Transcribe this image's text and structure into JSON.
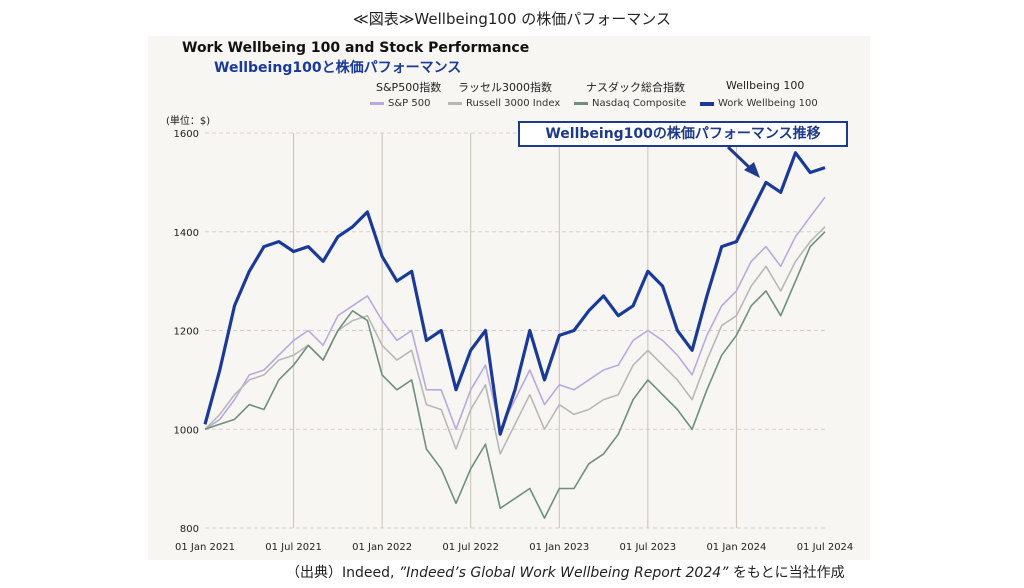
{
  "figure_title": "≪図表≫Wellbeing100 の株価パフォーマンス",
  "source_prefix": "（出典）Indeed,",
  "source_italic": "”Indeed’s Global Work Wellbeing Report 2024”",
  "source_suffix": "をもとに当社作成",
  "callout": "Wellbeing100の株価パフォーマンス推移",
  "colors": {
    "sp500": "#b9a9e0",
    "russell": "#b8b8b8",
    "nasdaq": "#6f8f7e",
    "wellbeing": "#1a3a9a"
  },
  "chart_data": {
    "type": "line",
    "title": "Work Wellbeing 100 and Stock Performance",
    "subtitle": "Wellbeing100と株価パフォーマンス",
    "ylabel": "(単位：$)",
    "ylim": [
      800,
      1600
    ],
    "yticks": [
      800,
      1000,
      1200,
      1400,
      1600
    ],
    "xlim": [
      "2021-01-01",
      "2024-07-01"
    ],
    "xticks": [
      "01 Jan 2021",
      "01 Jul 2021",
      "01 Jan 2022",
      "01 Jul 2022",
      "01 Jan 2023",
      "01 Jul 2023",
      "01 Jan 2024",
      "01 Jul 2024"
    ],
    "grid": "vertical solid, horizontal dashed",
    "legend_position": "top",
    "x": [
      "2021-01",
      "2021-02",
      "2021-03",
      "2021-04",
      "2021-05",
      "2021-06",
      "2021-07",
      "2021-08",
      "2021-09",
      "2021-10",
      "2021-11",
      "2021-12",
      "2022-01",
      "2022-02",
      "2022-03",
      "2022-04",
      "2022-05",
      "2022-06",
      "2022-07",
      "2022-08",
      "2022-09",
      "2022-10",
      "2022-11",
      "2022-12",
      "2023-01",
      "2023-02",
      "2023-03",
      "2023-04",
      "2023-05",
      "2023-06",
      "2023-07",
      "2023-08",
      "2023-09",
      "2023-10",
      "2023-11",
      "2023-12",
      "2024-01",
      "2024-02",
      "2024-03",
      "2024-04",
      "2024-05",
      "2024-06",
      "2024-07"
    ],
    "series": [
      {
        "name": "S&P 500",
        "legend_jp": "S&P500指数",
        "values": [
          1000,
          1020,
          1060,
          1110,
          1120,
          1150,
          1180,
          1200,
          1170,
          1230,
          1250,
          1270,
          1220,
          1180,
          1200,
          1080,
          1080,
          1000,
          1080,
          1130,
          1000,
          1060,
          1120,
          1050,
          1090,
          1080,
          1100,
          1120,
          1130,
          1180,
          1200,
          1180,
          1150,
          1110,
          1190,
          1250,
          1280,
          1340,
          1370,
          1330,
          1390,
          1430,
          1470
        ]
      },
      {
        "name": "Russell 3000 Index",
        "legend_jp": "ラッセル3000指数",
        "values": [
          1000,
          1030,
          1070,
          1100,
          1110,
          1140,
          1150,
          1170,
          1140,
          1200,
          1220,
          1230,
          1170,
          1140,
          1160,
          1050,
          1040,
          960,
          1040,
          1090,
          950,
          1010,
          1070,
          1000,
          1050,
          1030,
          1040,
          1060,
          1070,
          1130,
          1160,
          1130,
          1100,
          1060,
          1140,
          1210,
          1230,
          1290,
          1330,
          1280,
          1340,
          1380,
          1410
        ]
      },
      {
        "name": "Nasdaq Composite",
        "legend_jp": "ナスダック総合指数",
        "values": [
          1000,
          1010,
          1020,
          1050,
          1040,
          1100,
          1130,
          1170,
          1140,
          1200,
          1240,
          1220,
          1110,
          1080,
          1100,
          960,
          920,
          850,
          920,
          970,
          840,
          860,
          880,
          820,
          880,
          880,
          930,
          950,
          990,
          1060,
          1100,
          1070,
          1040,
          1000,
          1080,
          1150,
          1190,
          1250,
          1280,
          1230,
          1300,
          1370,
          1400
        ]
      },
      {
        "name": "Work Wellbeing 100",
        "legend_jp": "Wellbeing 100",
        "values": [
          1010,
          1120,
          1250,
          1320,
          1370,
          1380,
          1360,
          1370,
          1340,
          1390,
          1410,
          1440,
          1350,
          1300,
          1320,
          1180,
          1200,
          1080,
          1160,
          1200,
          990,
          1080,
          1200,
          1100,
          1190,
          1200,
          1240,
          1270,
          1230,
          1250,
          1320,
          1290,
          1200,
          1160,
          1270,
          1370,
          1380,
          1440,
          1500,
          1480,
          1560,
          1520,
          1530
        ]
      }
    ]
  }
}
